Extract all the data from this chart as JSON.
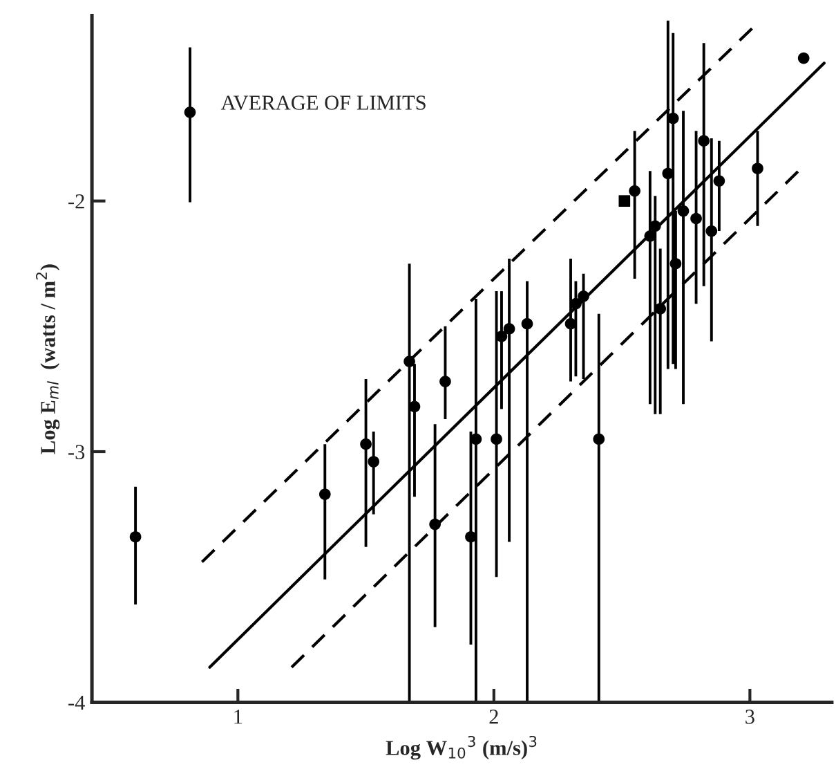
{
  "chart_data": {
    "type": "scatter",
    "xlabel": "Log W$_{10}$$^{3}$ (m/s)$^{3}$",
    "ylabel": "Log E$_{ml}$  (watts / m$^{2}$)",
    "xlim": [
      0.43,
      3.32
    ],
    "ylim": [
      -4,
      -1.26
    ],
    "xticks": [
      1,
      2,
      3
    ],
    "yticks": [
      -4,
      -3,
      -2
    ],
    "grid": false,
    "legend": false,
    "series": [
      {
        "marker": "circle",
        "color": "#000000",
        "x": [
          0.6,
          1.34,
          1.5,
          1.53,
          1.67,
          1.69,
          1.77,
          1.81,
          1.91,
          1.93,
          2.01,
          2.03,
          2.06,
          2.13,
          2.3,
          2.32,
          2.35,
          2.41,
          2.55,
          2.61,
          2.63,
          2.65,
          2.68,
          2.7,
          2.71,
          2.74,
          2.79,
          2.82,
          2.85,
          2.88,
          3.03,
          3.21
        ],
        "values": [
          -3.34,
          -3.17,
          -2.97,
          -3.04,
          -2.64,
          -2.82,
          -3.29,
          -2.72,
          -3.34,
          -2.95,
          -2.95,
          -2.54,
          -2.51,
          -2.49,
          -2.49,
          -2.41,
          -2.38,
          -2.95,
          -1.96,
          -2.14,
          -2.1,
          -2.43,
          -1.89,
          -1.67,
          -2.25,
          -2.04,
          -2.07,
          -1.76,
          -2.12,
          -1.92,
          -1.87,
          -1.43
        ],
        "errors": [
          [
            -3.61,
            -3.14
          ],
          [
            -3.51,
            -2.97
          ],
          [
            -3.38,
            -2.71
          ],
          [
            -3.25,
            -2.92
          ],
          [
            -4.0,
            -2.25
          ],
          [
            -3.18,
            -2.65
          ],
          [
            -3.7,
            -2.89
          ],
          [
            -2.87,
            -2.5
          ],
          [
            -3.77,
            -2.92
          ],
          [
            -4.0,
            -2.39
          ],
          [
            -3.5,
            -2.36
          ],
          [
            -2.83,
            -2.36
          ],
          [
            -3.36,
            -2.23
          ],
          [
            -4.0,
            -2.32
          ],
          [
            -2.72,
            -2.23
          ],
          [
            -2.7,
            -2.32
          ],
          [
            -2.71,
            -2.29
          ],
          [
            -4.0,
            -2.45
          ],
          [
            -2.31,
            -1.72
          ],
          [
            -2.81,
            -1.88
          ],
          [
            -2.85,
            -1.98
          ],
          [
            -2.85,
            -2.19
          ],
          [
            -2.67,
            -1.28
          ],
          [
            -2.65,
            -1.33
          ],
          [
            -2.67,
            -2.04
          ],
          [
            -2.81,
            -1.64
          ],
          [
            -2.41,
            -1.72
          ],
          [
            -2.34,
            -1.37
          ],
          [
            -2.56,
            -1.75
          ],
          [
            -2.12,
            -1.76
          ],
          [
            -2.1,
            -1.72
          ],
          null
        ]
      },
      {
        "marker": "square",
        "color": "#000000",
        "x": [
          2.51
        ],
        "values": [
          -2.0
        ]
      },
      {
        "marker": "circle",
        "color": "#000000",
        "name": "AVERAGE OF LIMITS",
        "x": [
          0.813
        ],
        "values": [
          -1.646
        ],
        "errors": [
          [
            -2.005,
            -1.387
          ]
        ]
      },
      {
        "type": "line",
        "line_style": "solid",
        "color": "#000000",
        "x": [
          0.89,
          3.29
        ],
        "values": [
          -3.86,
          -1.45
        ]
      },
      {
        "type": "line",
        "line_style": "dashed",
        "color": "#000000",
        "x": [
          0.86,
          3.01
        ],
        "values": [
          -3.44,
          -1.31
        ]
      },
      {
        "type": "line",
        "line_style": "dashed",
        "color": "#000000",
        "x": [
          1.21,
          3.19
        ],
        "values": [
          -3.86,
          -1.88
        ]
      }
    ]
  }
}
